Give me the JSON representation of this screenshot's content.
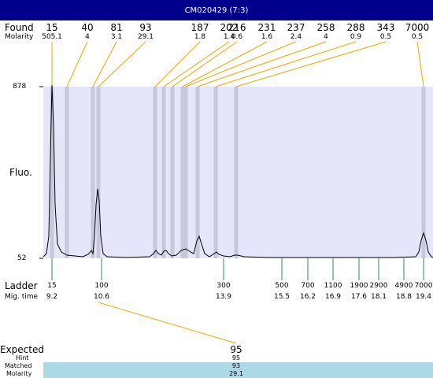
{
  "window": {
    "title": "CM020429 (7:3)"
  },
  "labels": {
    "found": "Found",
    "molarity": "Molarity",
    "fluo": "Fluo.",
    "ladder": "Ladder",
    "mig_time": "Mig. time",
    "expected": "Expected",
    "hint": "Hint",
    "matched": "Matched",
    "molarity_bottom": "Molarity"
  },
  "colors": {
    "title_bar": "#00008b",
    "plot_bg": "#e6e6fa",
    "peak_band": "#c8c8dc",
    "connector": "#f0a500",
    "ladder_tick": "#2e8b57",
    "matched_bar": "#add8e6"
  },
  "chart_data": {
    "type": "line",
    "ylabel": "Fluo.",
    "ylim": [
      52,
      878
    ],
    "y_ticks": [
      "878",
      "52"
    ],
    "found_peaks": [
      {
        "size": "15",
        "molarity": "505.1"
      },
      {
        "size": "40",
        "molarity": "4"
      },
      {
        "size": "81",
        "molarity": "3.1"
      },
      {
        "size": "93",
        "molarity": "29.1"
      },
      {
        "size": "187",
        "molarity": "1.8"
      },
      {
        "size": "202",
        "molarity": "1.4"
      },
      {
        "size": "216",
        "molarity": "0.6"
      },
      {
        "size": "231",
        "molarity": "1.6"
      },
      {
        "size": "237",
        "molarity": "2.4"
      },
      {
        "size": "258",
        "molarity": "4"
      },
      {
        "size": "288",
        "molarity": "0.9"
      },
      {
        "size": "343",
        "molarity": "0.5"
      },
      {
        "size": "7000",
        "molarity": "0.5"
      }
    ],
    "ladder": [
      {
        "size": "15",
        "mig_time": "9.2"
      },
      {
        "size": "100",
        "mig_time": "10.6"
      },
      {
        "size": "300",
        "mig_time": "13.9"
      },
      {
        "size": "500",
        "mig_time": "15.5"
      },
      {
        "size": "700",
        "mig_time": "16.2"
      },
      {
        "size": "1100",
        "mig_time": "16.9"
      },
      {
        "size": "1900",
        "mig_time": "17.6"
      },
      {
        "size": "2900",
        "mig_time": "18.1"
      },
      {
        "size": "4900",
        "mig_time": "18.8"
      },
      {
        "size": "7000",
        "mig_time": "19.4"
      }
    ],
    "expected": {
      "expected": "95",
      "hint": "95",
      "matched": "93",
      "molarity": "29.1"
    }
  }
}
